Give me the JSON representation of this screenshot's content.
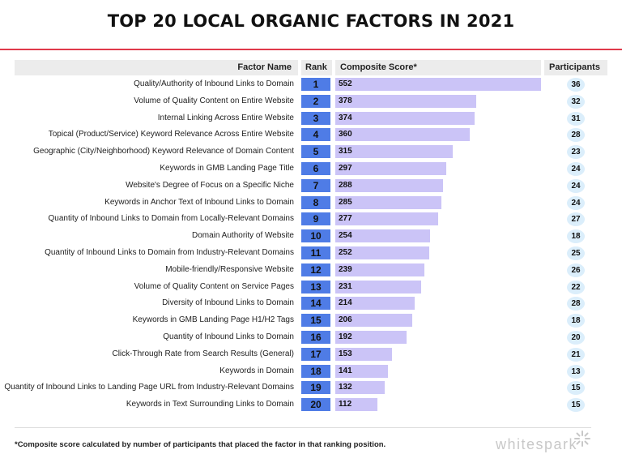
{
  "title": "TOP 20 LOCAL ORGANIC FACTORS IN 2021",
  "headers": {
    "factor_name": "Factor Name",
    "rank": "Rank",
    "composite_score": "Composite Score*",
    "participants": "Participants"
  },
  "footnote": "*Composite score calculated by number of participants that placed the factor in that ranking position.",
  "logo_text": "whitespark",
  "colors": {
    "accent_rule": "#e0394a",
    "rank_box": "#4f7ce6",
    "bar": "#cbc4f7",
    "participant_circle": "#dbeefb",
    "header_bg": "#ececec"
  },
  "chart_data": {
    "type": "bar",
    "title": "TOP 20 LOCAL ORGANIC FACTORS IN 2021",
    "xlabel": "Composite Score*",
    "ylabel": "Factor Name",
    "xlim": [
      0,
      552
    ],
    "grid": false,
    "legend": "none",
    "categories": [
      "Quality/Authority of Inbound Links to Domain",
      "Volume of Quality Content on Entire Website",
      "Internal Linking Across Entire Website",
      "Topical (Product/Service) Keyword Relevance Across Entire Website",
      "Geographic (City/Neighborhood) Keyword Relevance of Domain Content",
      "Keywords in GMB Landing Page Title",
      "Website's Degree of Focus on a Specific Niche",
      "Keywords in Anchor Text of Inbound Links to Domain",
      "Quantity of Inbound Links to Domain from Locally-Relevant Domains",
      "Domain Authority of Website",
      "Quantity of Inbound Links to Domain from Industry-Relevant Domains",
      "Mobile-friendly/Responsive Website",
      "Volume of Quality Content on Service Pages",
      "Diversity of Inbound Links to Domain",
      "Keywords in GMB Landing Page H1/H2 Tags",
      "Quantity of Inbound Links to Domain",
      "Click-Through Rate from Search Results (General)",
      "Keywords in Domain",
      "Quantity of Inbound Links to Landing Page URL from Industry-Relevant Domains",
      "Keywords in Text Surrounding Links to Domain"
    ],
    "ranks": [
      "1",
      "2",
      "3",
      "4",
      "5",
      "6",
      "7",
      "8",
      "9",
      "10",
      "11",
      "12",
      "13",
      "14",
      "15",
      "16",
      "17",
      "18",
      "19",
      "20"
    ],
    "values": [
      552,
      378,
      374,
      360,
      315,
      297,
      288,
      285,
      277,
      254,
      252,
      239,
      231,
      214,
      206,
      192,
      153,
      141,
      132,
      112
    ],
    "participants": [
      36,
      32,
      31,
      28,
      23,
      24,
      24,
      24,
      27,
      18,
      25,
      26,
      22,
      28,
      18,
      20,
      21,
      13,
      15,
      15
    ]
  }
}
